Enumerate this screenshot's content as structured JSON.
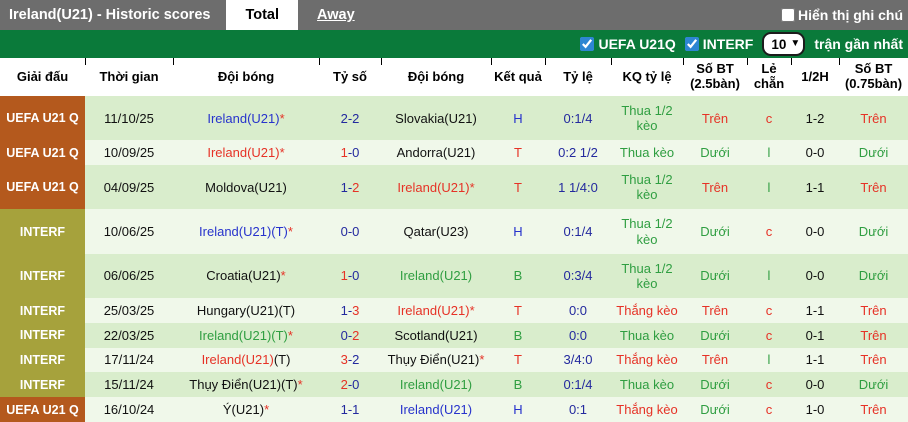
{
  "tab_bar": {
    "title": "Ireland(U21) - Historic scores",
    "tabs": [
      {
        "label": "Total",
        "active": true
      },
      {
        "label": "Away",
        "active": false
      }
    ],
    "note_toggle": {
      "label": "Hiển thị ghi chú",
      "checked": false
    }
  },
  "filter_bar": {
    "filters": [
      {
        "label": "UEFA U21Q",
        "checked": true
      },
      {
        "label": "INTERF",
        "checked": true
      }
    ],
    "match_count": {
      "value": "10",
      "options": [
        "10"
      ],
      "suffix_label": "trận gần nhất"
    }
  },
  "icons": {
    "select_chevron": "▼"
  },
  "colors": {
    "bar_gray": "#6d6d6d",
    "bar_green": "#0a7a3a",
    "league_uefa": "#b4591d",
    "league_interf": "#a6a23c",
    "row_odd": "#d9edcc",
    "row_even": "#f0f8ea",
    "text_blue": "#2733cc",
    "text_navy": "#23299e",
    "text_red": "#e63226",
    "text_green": "#2f9e41"
  },
  "table": {
    "columns": [
      "Giải đấu",
      "Thời gian",
      "Đội bóng",
      "Tỷ số",
      "Đội bóng",
      "Kết quả",
      "Tỷ lệ",
      "KQ tỷ lệ",
      "Số BT (2.5bàn)",
      "Lẻ chẵn",
      "1/2H",
      "Số BT (0.75bàn)"
    ],
    "rows": [
      {
        "league": "UEFA U21 Q",
        "league_style": "uefa",
        "date": "11/10/25",
        "home": [
          {
            "t": "Ireland(U21)",
            "c": "blue"
          },
          {
            "t": "*",
            "c": "red"
          }
        ],
        "score": [
          {
            "t": "2-2",
            "c": "navy"
          }
        ],
        "away": [
          {
            "t": "Slovakia(U21)",
            "c": "black"
          }
        ],
        "result": {
          "t": "H",
          "c": "blue"
        },
        "odds": "0:1/4",
        "odds_result": {
          "t": "Thua 1/2 kèo",
          "c": "green"
        },
        "ou25": {
          "t": "Trên",
          "c": "red"
        },
        "odd_even": {
          "t": "c",
          "c": "red"
        },
        "half": "1-2",
        "ou075": {
          "t": "Trên",
          "c": "red"
        }
      },
      {
        "league": "UEFA U21 Q",
        "league_style": "uefa",
        "date": "10/09/25",
        "home": [
          {
            "t": "Ireland(U21)",
            "c": "red"
          },
          {
            "t": "*",
            "c": "red"
          }
        ],
        "score": [
          {
            "t": "1",
            "c": "red"
          },
          {
            "t": "-0",
            "c": "navy"
          }
        ],
        "away": [
          {
            "t": "Andorra(U21)",
            "c": "black"
          }
        ],
        "result": {
          "t": "T",
          "c": "red"
        },
        "odds": "0:2 1/2",
        "odds_result": {
          "t": "Thua kèo",
          "c": "green"
        },
        "ou25": {
          "t": "Dưới",
          "c": "green"
        },
        "odd_even": {
          "t": "l",
          "c": "green"
        },
        "half": "0-0",
        "ou075": {
          "t": "Dưới",
          "c": "green"
        }
      },
      {
        "league": "UEFA U21 Q",
        "league_style": "uefa",
        "date": "04/09/25",
        "home": [
          {
            "t": "Moldova(U21)",
            "c": "black"
          }
        ],
        "score": [
          {
            "t": "1-",
            "c": "navy"
          },
          {
            "t": "2",
            "c": "red"
          }
        ],
        "away": [
          {
            "t": "Ireland(U21)",
            "c": "red"
          },
          {
            "t": "*",
            "c": "red"
          }
        ],
        "result": {
          "t": "T",
          "c": "red"
        },
        "odds": "1 1/4:0",
        "odds_result": {
          "t": "Thua 1/2 kèo",
          "c": "green"
        },
        "ou25": {
          "t": "Trên",
          "c": "red"
        },
        "odd_even": {
          "t": "l",
          "c": "green"
        },
        "half": "1-1",
        "ou075": {
          "t": "Trên",
          "c": "red"
        }
      },
      {
        "league": "INTERF",
        "league_style": "interf",
        "date": "10/06/25",
        "home": [
          {
            "t": "Ireland(U21)(T)",
            "c": "blue"
          },
          {
            "t": "*",
            "c": "red"
          }
        ],
        "score": [
          {
            "t": "0-0",
            "c": "navy"
          }
        ],
        "away": [
          {
            "t": "Qatar(U23)",
            "c": "black"
          }
        ],
        "result": {
          "t": "H",
          "c": "blue"
        },
        "odds": "0:1/4",
        "odds_result": {
          "t": "Thua 1/2 kèo",
          "c": "green"
        },
        "ou25": {
          "t": "Dưới",
          "c": "green"
        },
        "odd_even": {
          "t": "c",
          "c": "red"
        },
        "half": "0-0",
        "ou075": {
          "t": "Dưới",
          "c": "green"
        }
      },
      {
        "league": "INTERF",
        "league_style": "interf",
        "date": "06/06/25",
        "home": [
          {
            "t": "Croatia(U21)",
            "c": "black"
          },
          {
            "t": "*",
            "c": "red"
          }
        ],
        "score": [
          {
            "t": "1",
            "c": "red"
          },
          {
            "t": "-0",
            "c": "navy"
          }
        ],
        "away": [
          {
            "t": "Ireland(U21)",
            "c": "green"
          }
        ],
        "result": {
          "t": "B",
          "c": "green"
        },
        "odds": "0:3/4",
        "odds_result": {
          "t": "Thua 1/2 kèo",
          "c": "green"
        },
        "ou25": {
          "t": "Dưới",
          "c": "green"
        },
        "odd_even": {
          "t": "l",
          "c": "green"
        },
        "half": "0-0",
        "ou075": {
          "t": "Dưới",
          "c": "green"
        }
      },
      {
        "league": "INTERF",
        "league_style": "interf",
        "date": "25/03/25",
        "home": [
          {
            "t": "Hungary(U21)(T)",
            "c": "black"
          }
        ],
        "score": [
          {
            "t": "1-",
            "c": "navy"
          },
          {
            "t": "3",
            "c": "red"
          }
        ],
        "away": [
          {
            "t": "Ireland(U21)",
            "c": "red"
          },
          {
            "t": "*",
            "c": "red"
          }
        ],
        "result": {
          "t": "T",
          "c": "red"
        },
        "odds": "0:0",
        "odds_result": {
          "t": "Thắng kèo",
          "c": "red"
        },
        "ou25": {
          "t": "Trên",
          "c": "red"
        },
        "odd_even": {
          "t": "c",
          "c": "red"
        },
        "half": "1-1",
        "ou075": {
          "t": "Trên",
          "c": "red"
        }
      },
      {
        "league": "INTERF",
        "league_style": "interf",
        "date": "22/03/25",
        "home": [
          {
            "t": "Ireland(U21)(T)",
            "c": "green"
          },
          {
            "t": "*",
            "c": "red"
          }
        ],
        "score": [
          {
            "t": "0-",
            "c": "navy"
          },
          {
            "t": "2",
            "c": "red"
          }
        ],
        "away": [
          {
            "t": "Scotland(U21)",
            "c": "black"
          }
        ],
        "result": {
          "t": "B",
          "c": "green"
        },
        "odds": "0:0",
        "odds_result": {
          "t": "Thua kèo",
          "c": "green"
        },
        "ou25": {
          "t": "Dưới",
          "c": "green"
        },
        "odd_even": {
          "t": "c",
          "c": "red"
        },
        "half": "0-1",
        "ou075": {
          "t": "Trên",
          "c": "red"
        }
      },
      {
        "league": "INTERF",
        "league_style": "interf",
        "date": "17/11/24",
        "home": [
          {
            "t": "Ireland(U21)",
            "c": "red"
          },
          {
            "t": "(T)",
            "c": "black"
          }
        ],
        "score": [
          {
            "t": "3",
            "c": "red"
          },
          {
            "t": "-2",
            "c": "navy"
          }
        ],
        "away": [
          {
            "t": "Thụy Điển(U21)",
            "c": "black"
          },
          {
            "t": "*",
            "c": "red"
          }
        ],
        "result": {
          "t": "T",
          "c": "red"
        },
        "odds": "3/4:0",
        "odds_result": {
          "t": "Thắng kèo",
          "c": "red"
        },
        "ou25": {
          "t": "Trên",
          "c": "red"
        },
        "odd_even": {
          "t": "l",
          "c": "green"
        },
        "half": "1-1",
        "ou075": {
          "t": "Trên",
          "c": "red"
        }
      },
      {
        "league": "INTERF",
        "league_style": "interf",
        "date": "15/11/24",
        "home": [
          {
            "t": "Thụy Điển(U21)(T)",
            "c": "black"
          },
          {
            "t": "*",
            "c": "red"
          }
        ],
        "score": [
          {
            "t": "2",
            "c": "red"
          },
          {
            "t": "-0",
            "c": "navy"
          }
        ],
        "away": [
          {
            "t": "Ireland(U21)",
            "c": "green"
          }
        ],
        "result": {
          "t": "B",
          "c": "green"
        },
        "odds": "0:1/4",
        "odds_result": {
          "t": "Thua kèo",
          "c": "green"
        },
        "ou25": {
          "t": "Dưới",
          "c": "green"
        },
        "odd_even": {
          "t": "c",
          "c": "red"
        },
        "half": "0-0",
        "ou075": {
          "t": "Dưới",
          "c": "green"
        }
      },
      {
        "league": "UEFA U21 Q",
        "league_style": "uefa",
        "date": "16/10/24",
        "home": [
          {
            "t": "Ý(U21)",
            "c": "black"
          },
          {
            "t": "*",
            "c": "red"
          }
        ],
        "score": [
          {
            "t": "1-1",
            "c": "navy"
          }
        ],
        "away": [
          {
            "t": "Ireland(U21)",
            "c": "blue"
          }
        ],
        "result": {
          "t": "H",
          "c": "blue"
        },
        "odds": "0:1",
        "odds_result": {
          "t": "Thắng kèo",
          "c": "red"
        },
        "ou25": {
          "t": "Dưới",
          "c": "green"
        },
        "odd_even": {
          "t": "c",
          "c": "red"
        },
        "half": "1-0",
        "ou075": {
          "t": "Trên",
          "c": "red"
        }
      }
    ]
  }
}
